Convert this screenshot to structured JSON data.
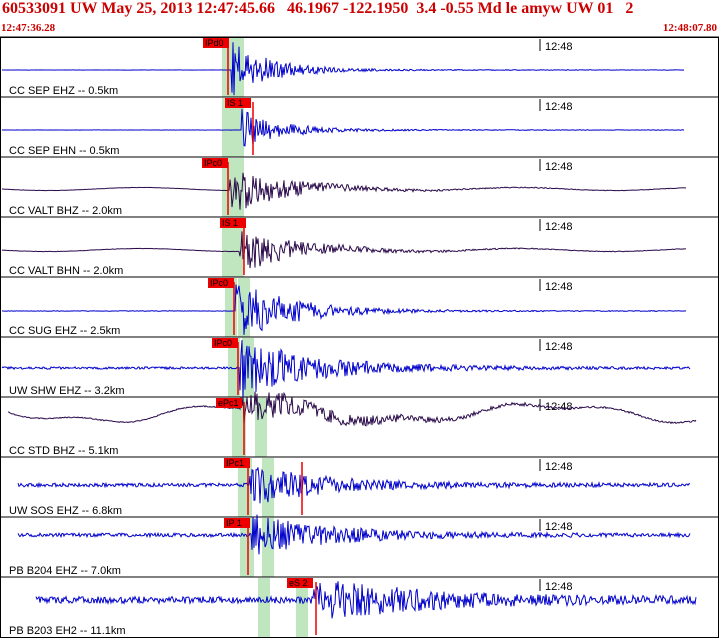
{
  "header": {
    "title": "60533091 UW May 25, 2013 12:47:45.66   46.1967 -122.1950  3.4 -0.55 Md le amyw UW 01   2",
    "start_time": "12:47:36.28",
    "end_time": "12:48:07.80"
  },
  "minute_mark": "12:48",
  "colors": {
    "accent": "#cc0000",
    "trace_blue": "#0000cc",
    "trace_dark": "#2a0a4a",
    "pick_red": "#ee0000",
    "window_green": "#bfe6bf"
  },
  "channels": [
    {
      "label": "CC SEP EHZ -- 0.5km",
      "pick": "IPd0",
      "color": "blue"
    },
    {
      "label": "CC SEP EHN -- 0.5km",
      "pick": "IS 1",
      "color": "blue"
    },
    {
      "label": "CC VALT BHZ -- 2.0km",
      "pick": "IPc0",
      "color": "dark"
    },
    {
      "label": "CC VALT BHN -- 2.0km",
      "pick": "IS 1",
      "color": "dark"
    },
    {
      "label": "CC SUG EHZ -- 2.5km",
      "pick": "IPc0",
      "color": "blue"
    },
    {
      "label": "UW SHW EHZ -- 3.2km",
      "pick": "IPc0",
      "color": "blue"
    },
    {
      "label": "CC STD BHZ -- 5.1km",
      "pick": "ePc1",
      "color": "dark"
    },
    {
      "label": "UW SOS EHZ -- 6.8km",
      "pick": "IPc1",
      "color": "blue"
    },
    {
      "label": "PB B204 EHZ -- 7.0km",
      "pick": "IP 1",
      "color": "blue"
    },
    {
      "label": "PB B203 EH2 -- 11.1km",
      "pick": "eS 2",
      "color": "blue"
    }
  ]
}
